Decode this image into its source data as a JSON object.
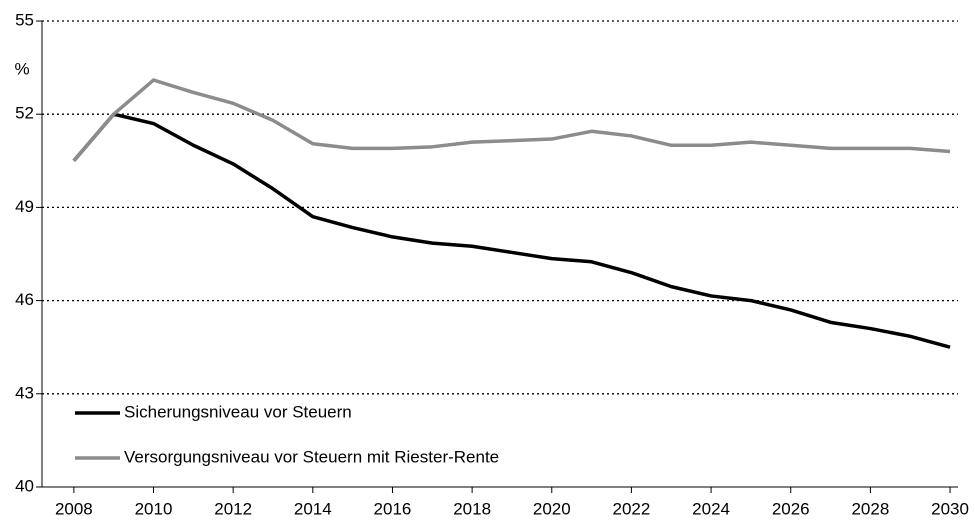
{
  "chart_data": {
    "type": "line",
    "y_label": "%",
    "x": [
      2008,
      2009,
      2010,
      2011,
      2012,
      2013,
      2014,
      2015,
      2016,
      2017,
      2018,
      2019,
      2020,
      2021,
      2022,
      2023,
      2024,
      2025,
      2026,
      2027,
      2028,
      2029,
      2030
    ],
    "series": [
      {
        "name": "Sicherungsniveau vor Steuern",
        "color": "#000000",
        "values": [
          50.5,
          52.0,
          51.7,
          51.0,
          50.4,
          49.6,
          48.7,
          48.35,
          48.05,
          47.85,
          47.75,
          47.55,
          47.35,
          47.25,
          46.9,
          46.45,
          46.15,
          46.0,
          45.7,
          45.3,
          45.1,
          44.85,
          44.5
        ]
      },
      {
        "name": "Versorgungsniveau vor Steuern mit Riester-Rente",
        "color": "#8c8c8c",
        "values": [
          50.5,
          52.0,
          53.1,
          52.7,
          52.35,
          51.8,
          51.05,
          50.9,
          50.9,
          50.95,
          51.1,
          51.15,
          51.2,
          51.45,
          51.3,
          51.0,
          51.0,
          51.1,
          51.0,
          50.9,
          50.9,
          50.9,
          50.8
        ]
      }
    ],
    "xlim": [
      2007.2,
      2030.2
    ],
    "xticks": [
      2008,
      2010,
      2012,
      2014,
      2016,
      2018,
      2020,
      2022,
      2024,
      2026,
      2028,
      2030
    ],
    "ylim": [
      40,
      55
    ],
    "yticks": [
      40,
      43,
      46,
      49,
      52,
      55
    ],
    "grid": true,
    "legend": "lower left"
  }
}
